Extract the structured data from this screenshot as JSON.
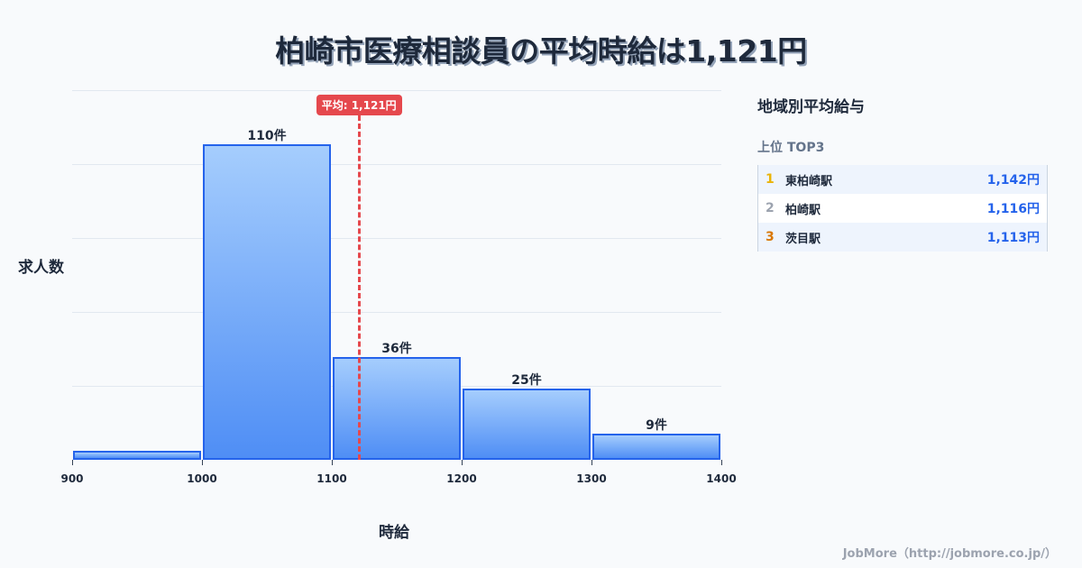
{
  "title": "柏崎市医療相談員の平均時給は1,121円",
  "chart_data": {
    "type": "bar",
    "subtype": "histogram",
    "title": "柏崎市医療相談員の平均時給は1,121円",
    "xlabel": "時給",
    "ylabel": "求人数",
    "bins": [
      [
        900,
        1000
      ],
      [
        1000,
        1100
      ],
      [
        1100,
        1200
      ],
      [
        1200,
        1300
      ],
      [
        1300,
        1400
      ]
    ],
    "categories": [
      "900-1000",
      "1000-1100",
      "1100-1200",
      "1200-1300",
      "1300-1400"
    ],
    "values": [
      3,
      110,
      36,
      25,
      9
    ],
    "bar_labels": [
      "",
      "110件",
      "36件",
      "25件",
      "9件"
    ],
    "x_ticks": [
      "900",
      "1000",
      "1100",
      "1200",
      "1300",
      "1400"
    ],
    "xlim": [
      900,
      1400
    ],
    "ylim": [
      0,
      129
    ],
    "grid": true,
    "average": {
      "value": 1121,
      "label": "平均: 1,121円",
      "color": "#e5484d"
    },
    "bar_color": "#4f8ef5",
    "bar_border_color": "#2563eb"
  },
  "panel": {
    "title": "地域別平均給与",
    "subtitle": "上位 TOP3",
    "rows": [
      {
        "rank": "1",
        "name": "東柏崎駅",
        "value": "1,142円",
        "rank_color": "#eab308"
      },
      {
        "rank": "2",
        "name": "柏崎駅",
        "value": "1,116円",
        "rank_color": "#9ca3af"
      },
      {
        "rank": "3",
        "name": "茨目駅",
        "value": "1,113円",
        "rank_color": "#d97706"
      }
    ]
  },
  "footer": "JobMore（http://jobmore.co.jp/）"
}
